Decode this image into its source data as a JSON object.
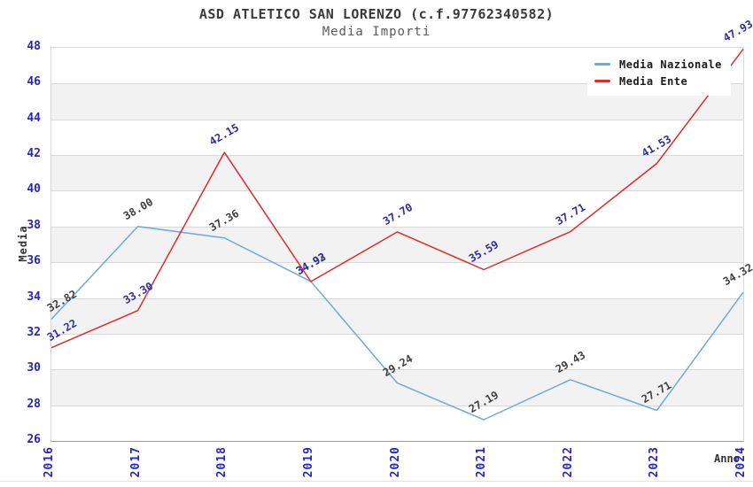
{
  "title": "ASD ATLETICO SAN LORENZO (c.f.97762340582)",
  "subtitle": "Media Importi",
  "chart_data": {
    "type": "line",
    "x": [
      "2016",
      "2017",
      "2018",
      "2019",
      "2020",
      "2021",
      "2022",
      "2023",
      "2024"
    ],
    "xlabel": "Anno",
    "ylabel": "Media",
    "ylim": [
      26,
      48
    ],
    "y_tick_step": 2,
    "grid": "horizontal-gridlines-with-alternating-bands",
    "legend_position": "top-right",
    "series": [
      {
        "name": "Media Nazionale",
        "color": "#6ea9dd",
        "label_color": "#3f3f3f",
        "values": [
          32.82,
          38.0,
          37.36,
          34.93,
          29.24,
          27.19,
          29.43,
          27.71,
          34.32
        ]
      },
      {
        "name": "Media Ente",
        "color": "#e32929",
        "label_color": "#2c2caa",
        "values": [
          31.22,
          33.3,
          42.15,
          34.92,
          37.7,
          35.59,
          37.71,
          41.53,
          47.93
        ]
      }
    ]
  },
  "colors": {
    "tick_label": "#2424cf",
    "band_gray": "#f2f2f2",
    "grid_line": "#d8d8d8",
    "axis_line": "#999999",
    "title_text": "#3a3a3a",
    "subtitle_text": "#5a5a5a"
  }
}
